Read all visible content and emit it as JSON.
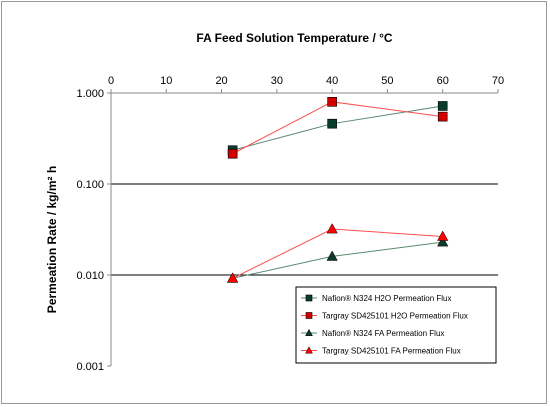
{
  "chart_data": {
    "type": "line",
    "title": "",
    "xlabel": "FA Feed Solution Temperature / °C",
    "ylabel": "Permeation Rate / kg/m² h",
    "xlim": [
      0,
      70
    ],
    "xticks": [
      0,
      10,
      20,
      30,
      40,
      50,
      60,
      70
    ],
    "ylim": [
      0.001,
      1
    ],
    "yscale": "log",
    "yticks": [
      0.001,
      0.01,
      0.1,
      1
    ],
    "ytick_labels": [
      "0.001",
      "0.010",
      "0.100",
      "1.000"
    ],
    "x_axis_position": "top",
    "grid": "horizontal major",
    "legend_position": "bottom-right",
    "series": [
      {
        "name": "Nafion® N324 H2O Permeation Flux",
        "marker": "square",
        "color": "#5b8a6e",
        "marker_color": "#0b3b2a",
        "x": [
          22,
          40,
          60
        ],
        "y": [
          0.235,
          0.46,
          0.72
        ]
      },
      {
        "name": "Targray SD425101 H2O Permeation Flux",
        "marker": "square",
        "color": "#ff4d4d",
        "marker_color": "#d00000",
        "x": [
          22,
          40,
          60
        ],
        "y": [
          0.215,
          0.8,
          0.55
        ]
      },
      {
        "name": "Nafion® N324 FA Permeation Flux",
        "marker": "triangle",
        "color": "#5b8a6e",
        "marker_color": "#0b3b2a",
        "x": [
          22,
          40,
          60
        ],
        "y": [
          0.0092,
          0.016,
          0.023
        ]
      },
      {
        "name": "Targray SD425101 FA Permeation Flux",
        "marker": "triangle",
        "color": "#ff4d4d",
        "marker_color": "#ff0000",
        "x": [
          22,
          40,
          60
        ],
        "y": [
          0.0092,
          0.032,
          0.0265
        ]
      }
    ]
  }
}
